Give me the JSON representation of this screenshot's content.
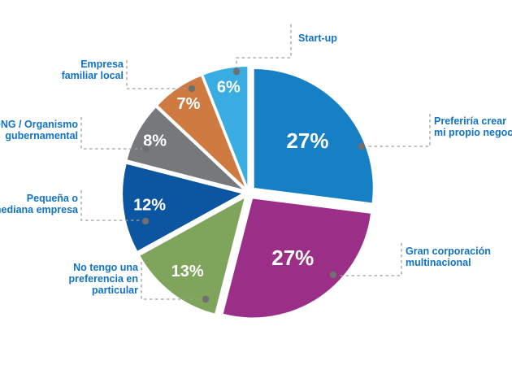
{
  "chart_data": {
    "type": "pie",
    "title": "",
    "description": "Exploded pie chart with callout labels (Spanish) showing employer-type preference",
    "start_angle_deg": 0,
    "direction": "clockwise",
    "legend_position": "callout-labels",
    "label_color": "#1173C5",
    "leader_line_color": "#9E9E9E",
    "marker_color": "#6F6F6F",
    "background_color": "#FFFFFF",
    "categories": [
      "Preferiría crear mi propio negocio",
      "Gran corporación multinacional",
      "No tengo una preferencia en particular",
      "Pequeña o mediana empresa",
      "ONG / Organismo gubernamental",
      "Empresa familiar local",
      "Start-up"
    ],
    "values": [
      27,
      27,
      13,
      12,
      8,
      7,
      6
    ],
    "slices": [
      {
        "label": "Preferiría crear mi propio negocio",
        "label_lines": [
          "Preferiría crear",
          "mi propio negocio"
        ],
        "value": 27,
        "pct_label": "27%",
        "color": "#1780C4"
      },
      {
        "label": "Gran corporación multinacional",
        "label_lines": [
          "Gran corporación",
          "multinacional"
        ],
        "value": 27,
        "pct_label": "27%",
        "color": "#9B2F88"
      },
      {
        "label": "No tengo una preferencia en particular",
        "label_lines": [
          "No tengo una",
          "preferencia en",
          "particular"
        ],
        "value": 13,
        "pct_label": "13%",
        "color": "#7EA55B"
      },
      {
        "label": "Pequeña o mediana empresa",
        "label_lines": [
          "Pequeña o",
          "mediana empresa"
        ],
        "value": 12,
        "pct_label": "12%",
        "color": "#0C55A0"
      },
      {
        "label": "ONG / Organismo gubernamental",
        "label_lines": [
          "ONG / Organismo",
          "gubernamental"
        ],
        "value": 8,
        "pct_label": "8%",
        "color": "#77787B"
      },
      {
        "label": "Empresa familiar local",
        "label_lines": [
          "Empresa",
          "familiar local"
        ],
        "value": 7,
        "pct_label": "7%",
        "color": "#CE7A41"
      },
      {
        "label": "Start-up",
        "label_lines": [
          "Start-up"
        ],
        "value": 6,
        "pct_label": "6%",
        "color": "#39ACE1"
      }
    ]
  }
}
